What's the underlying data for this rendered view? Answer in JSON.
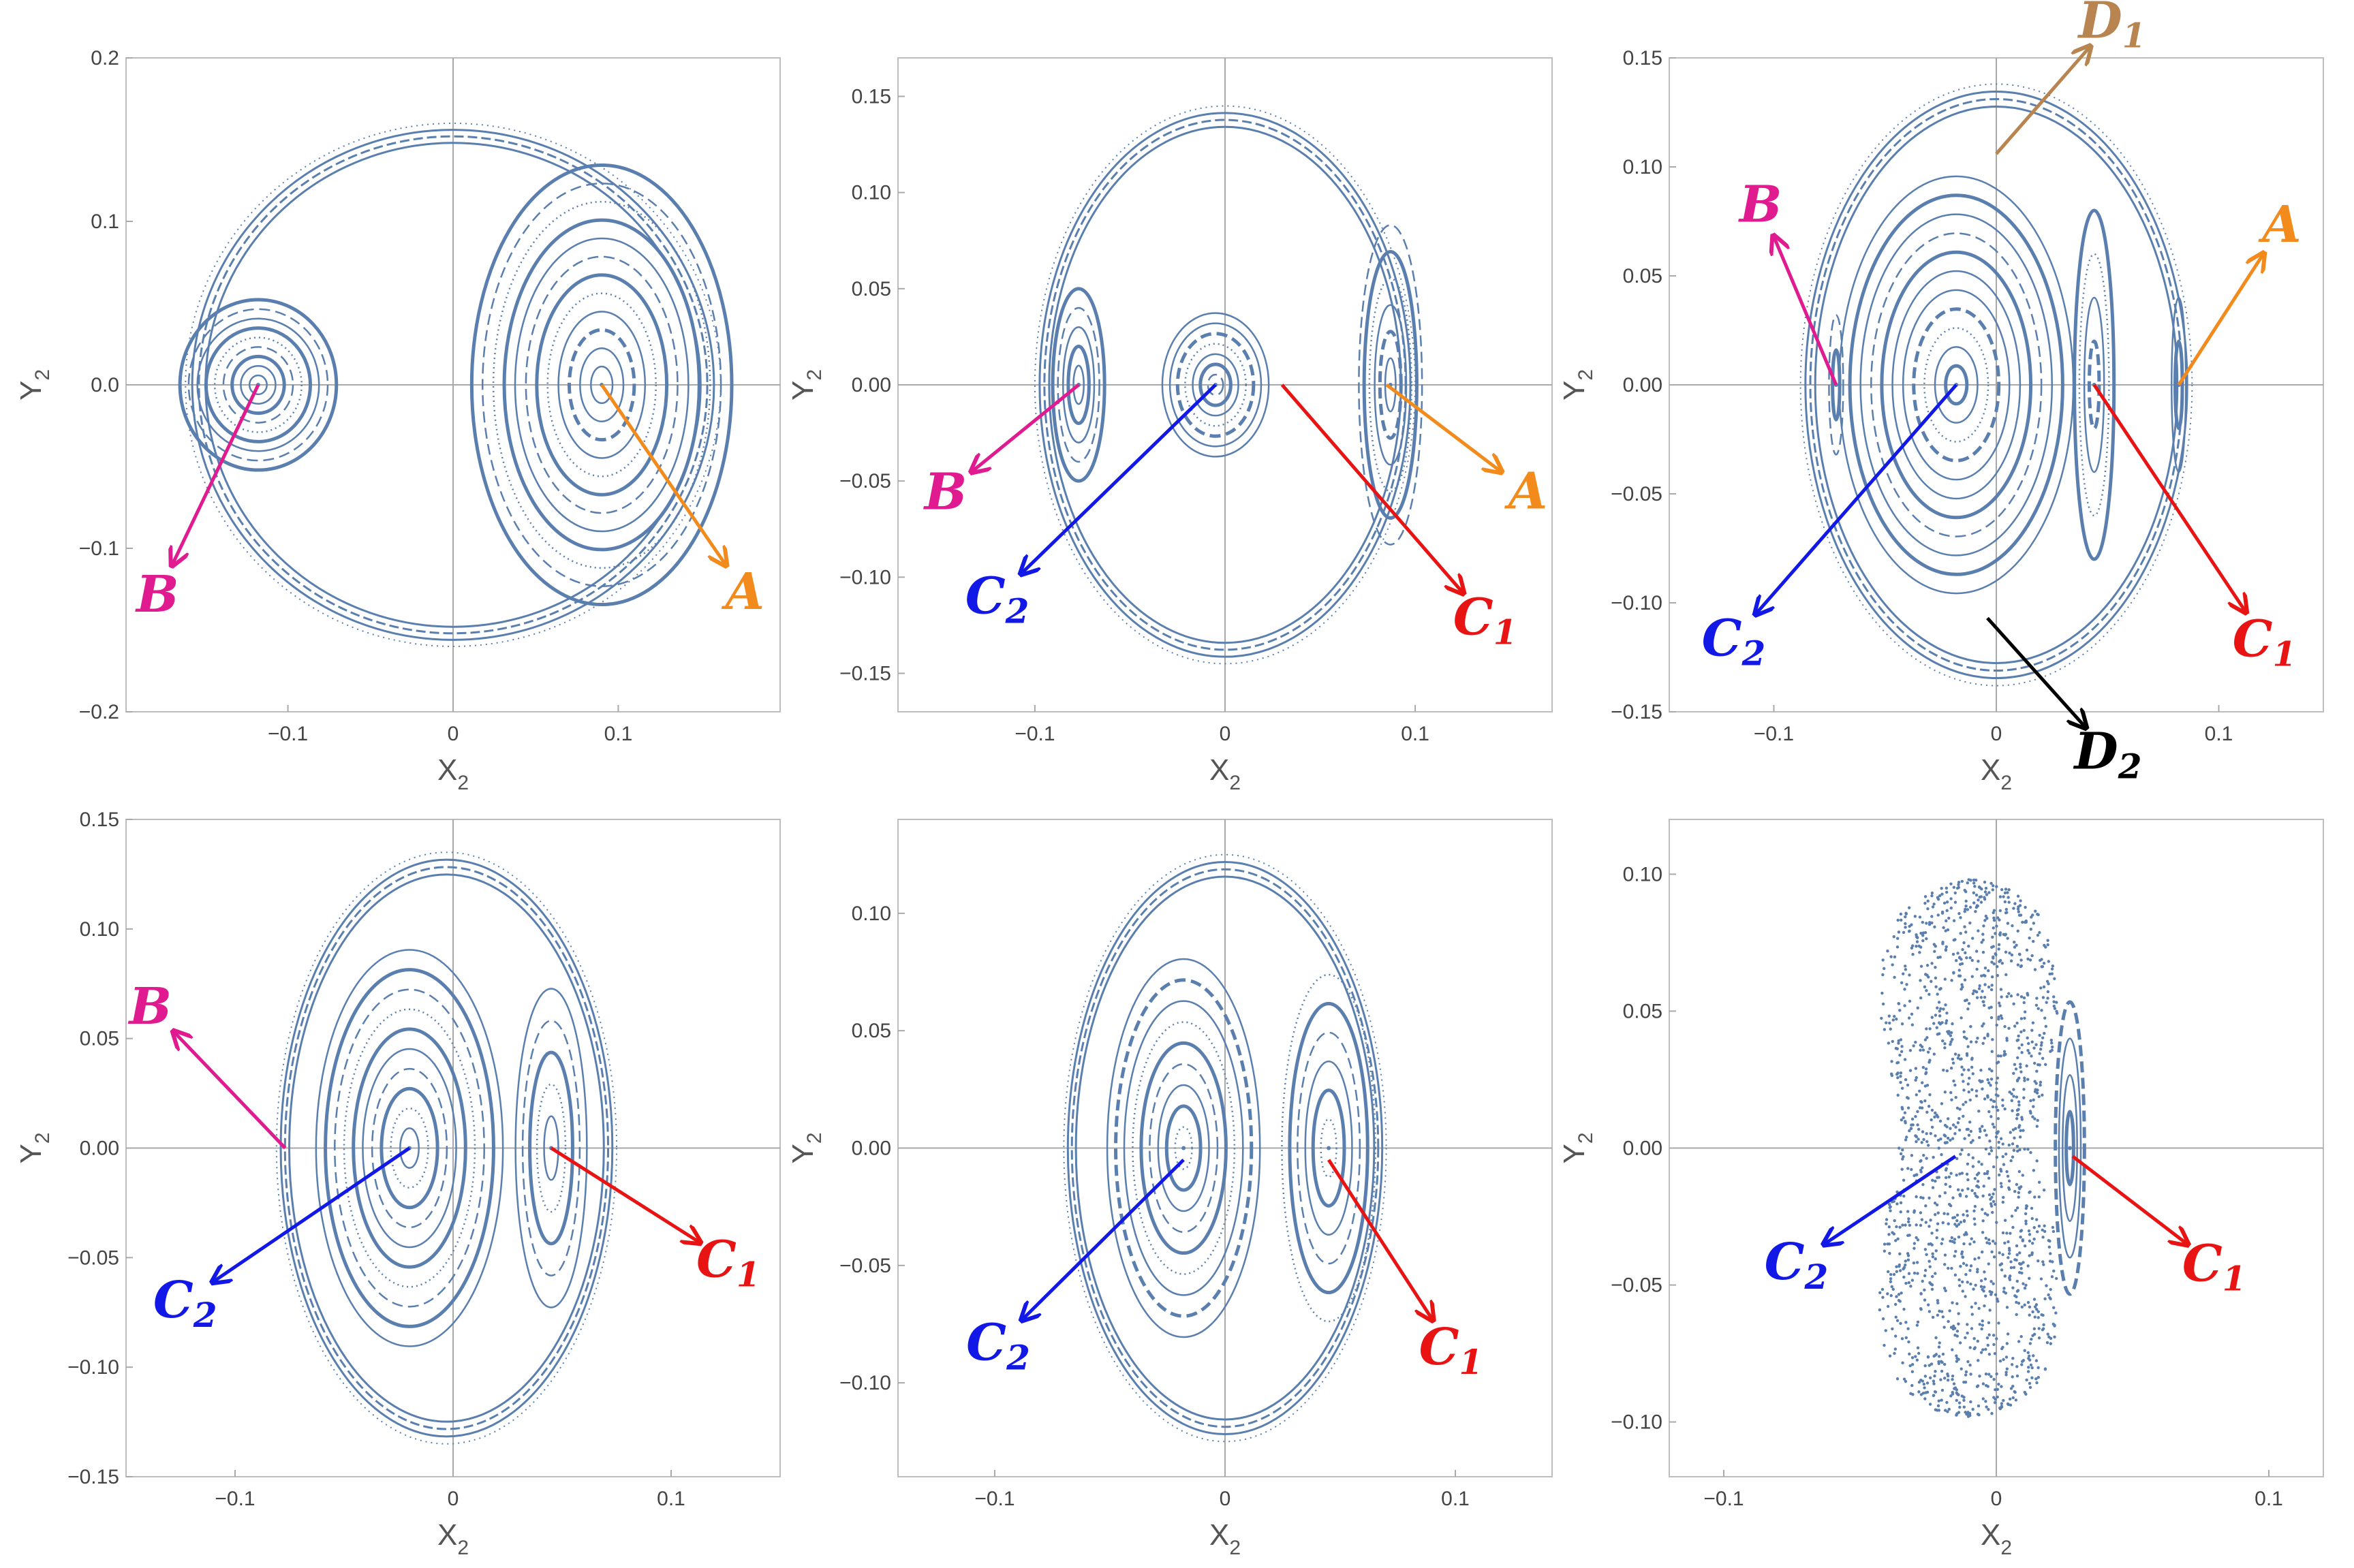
{
  "colors": {
    "orbit": "#5a7fae",
    "A": "#f28a1c",
    "B": "#e01b8f",
    "C1": "#e81414",
    "C2": "#1218e6",
    "D1": "#b8844f",
    "D2": "#000000"
  },
  "axis_titles": {
    "x": {
      "main": "X",
      "sub": "2"
    },
    "y": {
      "main": "Y",
      "sub": "2"
    }
  },
  "chart_data": [
    {
      "type": "scatter",
      "title": "",
      "xlabel": "X2",
      "ylabel": "Y2",
      "xlim": [
        -0.198,
        0.198
      ],
      "ylim": [
        -0.2,
        0.2
      ],
      "xticks": [
        {
          "v": -0.1,
          "label": "−0.1"
        },
        {
          "v": 0,
          "label": "0"
        },
        {
          "v": 0.1,
          "label": "0.1"
        }
      ],
      "yticks": [
        {
          "v": -0.2,
          "label": "−0.2"
        },
        {
          "v": -0.1,
          "label": "−0.1"
        },
        {
          "v": 0,
          "label": "0.0"
        },
        {
          "v": 0.1,
          "label": "0.1"
        },
        {
          "v": 0.2,
          "label": "0.2"
        }
      ],
      "islands": [
        {
          "cx": -0.118,
          "cy": 0,
          "rx": 0.05,
          "ry": 0.055,
          "rings": 9,
          "phase": 0
        },
        {
          "cx": 0.09,
          "cy": 0,
          "rx": 0.082,
          "ry": 0.14,
          "rings": 12,
          "phase": 0.5
        }
      ],
      "outer": {
        "cx": 0,
        "cy": 0,
        "rx": 0.162,
        "ry": 0.16
      },
      "annotations": [
        {
          "label": "A",
          "sub": "",
          "color": "A",
          "from": [
            0.09,
            0
          ],
          "to": [
            0.165,
            -0.11
          ]
        },
        {
          "label": "B",
          "sub": "",
          "color": "B",
          "from": [
            -0.118,
            0
          ],
          "to": [
            -0.17,
            -0.11
          ]
        }
      ]
    },
    {
      "type": "scatter",
      "title": "",
      "xlabel": "X2",
      "ylabel": "Y2",
      "xlim": [
        -0.172,
        0.172
      ],
      "ylim": [
        -0.17,
        0.17
      ],
      "xticks": [
        {
          "v": -0.1,
          "label": "−0.1"
        },
        {
          "v": 0,
          "label": "0"
        },
        {
          "v": 0.1,
          "label": "0.1"
        }
      ],
      "yticks": [
        {
          "v": -0.15,
          "label": "−0.15"
        },
        {
          "v": -0.1,
          "label": "−0.10"
        },
        {
          "v": -0.05,
          "label": "−0.05"
        },
        {
          "v": 0,
          "label": "0.00"
        },
        {
          "v": 0.05,
          "label": "0.05"
        },
        {
          "v": 0.1,
          "label": "0.10"
        },
        {
          "v": 0.15,
          "label": "0.15"
        }
      ],
      "islands": [
        {
          "cx": -0.077,
          "cy": 0,
          "rx": 0.015,
          "ry": 0.055,
          "rings": 5,
          "phase": 0
        },
        {
          "cx": -0.005,
          "cy": 0,
          "rx": 0.03,
          "ry": 0.04,
          "rings": 7,
          "phase": 0.3
        },
        {
          "cx": 0.087,
          "cy": 0,
          "rx": 0.018,
          "ry": 0.09,
          "rings": 6,
          "phase": 0.6
        }
      ],
      "outer": {
        "cx": 0,
        "cy": 0,
        "rx": 0.1,
        "ry": 0.145
      },
      "annotations": [
        {
          "label": "A",
          "sub": "",
          "color": "A",
          "from": [
            0.085,
            0
          ],
          "to": [
            0.145,
            -0.045
          ]
        },
        {
          "label": "B",
          "sub": "",
          "color": "B",
          "from": [
            -0.077,
            0
          ],
          "to": [
            -0.133,
            -0.045
          ]
        },
        {
          "label": "C",
          "sub": "1",
          "color": "C1",
          "from": [
            0.03,
            0
          ],
          "to": [
            0.125,
            -0.108
          ]
        },
        {
          "label": "C",
          "sub": "2",
          "color": "C2",
          "from": [
            -0.005,
            0
          ],
          "to": [
            -0.107,
            -0.098
          ]
        }
      ]
    },
    {
      "type": "scatter",
      "title": "",
      "xlabel": "X2",
      "ylabel": "Y2",
      "xlim": [
        -0.147,
        0.147
      ],
      "ylim": [
        -0.15,
        0.15
      ],
      "xticks": [
        {
          "v": -0.1,
          "label": "−0.1"
        },
        {
          "v": 0,
          "label": "0"
        },
        {
          "v": 0.1,
          "label": "0.1"
        }
      ],
      "yticks": [
        {
          "v": -0.15,
          "label": "−0.15"
        },
        {
          "v": -0.1,
          "label": "−0.10"
        },
        {
          "v": -0.05,
          "label": "−0.05"
        },
        {
          "v": 0,
          "label": "0.00"
        },
        {
          "v": 0.05,
          "label": "0.05"
        },
        {
          "v": 0.1,
          "label": "0.10"
        },
        {
          "v": 0.15,
          "label": "0.15"
        }
      ],
      "islands": [
        {
          "cx": -0.018,
          "cy": 0,
          "rx": 0.055,
          "ry": 0.1,
          "rings": 11,
          "phase": 0
        },
        {
          "cx": 0.044,
          "cy": 0,
          "rx": 0.01,
          "ry": 0.09,
          "rings": 4,
          "phase": 0.3
        },
        {
          "cx": -0.072,
          "cy": 0,
          "rx": 0.004,
          "ry": 0.04,
          "rings": 2,
          "phase": 0.6
        },
        {
          "cx": 0.082,
          "cy": 0,
          "rx": 0.004,
          "ry": 0.05,
          "rings": 2,
          "phase": 0.8
        }
      ],
      "outer": {
        "cx": 0,
        "cy": 0,
        "rx": 0.088,
        "ry": 0.138
      },
      "annotations": [
        {
          "label": "A",
          "sub": "",
          "color": "A",
          "from": [
            0.082,
            0
          ],
          "to": [
            0.12,
            0.06
          ]
        },
        {
          "label": "B",
          "sub": "",
          "color": "B",
          "from": [
            -0.072,
            0
          ],
          "to": [
            -0.1,
            0.068
          ]
        },
        {
          "label": "C",
          "sub": "1",
          "color": "C1",
          "from": [
            0.044,
            0
          ],
          "to": [
            0.112,
            -0.104
          ]
        },
        {
          "label": "C",
          "sub": "2",
          "color": "C2",
          "from": [
            -0.018,
            0
          ],
          "to": [
            -0.108,
            -0.105
          ]
        },
        {
          "label": "D",
          "sub": "1",
          "color": "D1",
          "from": [
            0,
            0.106
          ],
          "to": [
            0.042,
            0.155
          ]
        },
        {
          "label": "D",
          "sub": "2",
          "color": "D2",
          "from": [
            -0.004,
            -0.107
          ],
          "to": [
            0.04,
            -0.157
          ]
        }
      ]
    },
    {
      "type": "scatter",
      "title": "",
      "xlabel": "X2",
      "ylabel": "Y2",
      "xlim": [
        -0.15,
        0.15
      ],
      "ylim": [
        -0.15,
        0.15
      ],
      "xticks": [
        {
          "v": -0.1,
          "label": "−0.1"
        },
        {
          "v": 0,
          "label": "0"
        },
        {
          "v": 0.1,
          "label": "0.1"
        }
      ],
      "yticks": [
        {
          "v": -0.15,
          "label": "−0.15"
        },
        {
          "v": -0.1,
          "label": "−0.10"
        },
        {
          "v": -0.05,
          "label": "−0.05"
        },
        {
          "v": 0,
          "label": "0.00"
        },
        {
          "v": 0.05,
          "label": "0.05"
        },
        {
          "v": 0.1,
          "label": "0.10"
        },
        {
          "v": 0.15,
          "label": "0.15"
        }
      ],
      "islands": [
        {
          "cx": -0.02,
          "cy": 0,
          "rx": 0.045,
          "ry": 0.095,
          "rings": 10,
          "phase": 0
        },
        {
          "cx": 0.045,
          "cy": 0,
          "rx": 0.018,
          "ry": 0.08,
          "rings": 5,
          "phase": 0.4
        }
      ],
      "outer": {
        "cx": -0.003,
        "cy": 0,
        "rx": 0.078,
        "ry": 0.135
      },
      "annotations": [
        {
          "label": "B",
          "sub": "",
          "color": "B",
          "from": [
            -0.077,
            0
          ],
          "to": [
            -0.128,
            0.053
          ]
        },
        {
          "label": "C",
          "sub": "1",
          "color": "C1",
          "from": [
            0.045,
            0
          ],
          "to": [
            0.113,
            -0.043
          ]
        },
        {
          "label": "C",
          "sub": "2",
          "color": "C2",
          "from": [
            -0.02,
            0
          ],
          "to": [
            -0.11,
            -0.061
          ]
        }
      ]
    },
    {
      "type": "scatter",
      "title": "",
      "xlabel": "X2",
      "ylabel": "Y2",
      "xlim": [
        -0.142,
        0.142
      ],
      "ylim": [
        -0.14,
        0.14
      ],
      "xticks": [
        {
          "v": -0.1,
          "label": "−0.1"
        },
        {
          "v": 0,
          "label": "0"
        },
        {
          "v": 0.1,
          "label": "0.1"
        }
      ],
      "yticks": [
        {
          "v": -0.1,
          "label": "−0.10"
        },
        {
          "v": -0.05,
          "label": "−0.05"
        },
        {
          "v": 0,
          "label": "0.00"
        },
        {
          "v": 0.05,
          "label": "0.05"
        },
        {
          "v": 0.1,
          "label": "0.10"
        }
      ],
      "islands": [
        {
          "cx": -0.018,
          "cy": 0,
          "rx": 0.035,
          "ry": 0.085,
          "rings": 9,
          "phase": 0
        },
        {
          "cx": 0.045,
          "cy": 0,
          "rx": 0.022,
          "ry": 0.08,
          "rings": 6,
          "phase": 0.4
        }
      ],
      "outer": {
        "cx": 0,
        "cy": 0,
        "rx": 0.07,
        "ry": 0.125
      },
      "annotations": [
        {
          "label": "C",
          "sub": "1",
          "color": "C1",
          "from": [
            0.045,
            -0.005
          ],
          "to": [
            0.09,
            -0.073
          ]
        },
        {
          "label": "C",
          "sub": "2",
          "color": "C2",
          "from": [
            -0.018,
            -0.005
          ],
          "to": [
            -0.088,
            -0.073
          ]
        }
      ]
    },
    {
      "type": "scatter",
      "title": "",
      "xlabel": "X2",
      "ylabel": "Y2",
      "xlim": [
        -0.12,
        0.12
      ],
      "ylim": [
        -0.12,
        0.12
      ],
      "xticks": [
        {
          "v": -0.1,
          "label": "−0.1"
        },
        {
          "v": 0,
          "label": "0"
        },
        {
          "v": 0.1,
          "label": "0.1"
        }
      ],
      "yticks": [
        {
          "v": -0.1,
          "label": "−0.10"
        },
        {
          "v": -0.05,
          "label": "−0.05"
        },
        {
          "v": 0,
          "label": "0.00"
        },
        {
          "v": 0.05,
          "label": "0.05"
        },
        {
          "v": 0.1,
          "label": "0.10"
        }
      ],
      "chaos": {
        "cx": -0.01,
        "rx": 0.034,
        "ry": 0.098,
        "waist": 0.25,
        "count": 1600
      },
      "islands": [
        {
          "cx": 0.027,
          "cy": 0,
          "rx": 0.006,
          "ry": 0.06,
          "rings": 4,
          "phase": 0
        }
      ],
      "annotations": [
        {
          "label": "C",
          "sub": "1",
          "color": "C1",
          "from": [
            0.028,
            -0.003
          ],
          "to": [
            0.07,
            -0.035
          ]
        },
        {
          "label": "C",
          "sub": "2",
          "color": "C2",
          "from": [
            -0.015,
            -0.003
          ],
          "to": [
            -0.063,
            -0.035
          ]
        }
      ]
    }
  ]
}
